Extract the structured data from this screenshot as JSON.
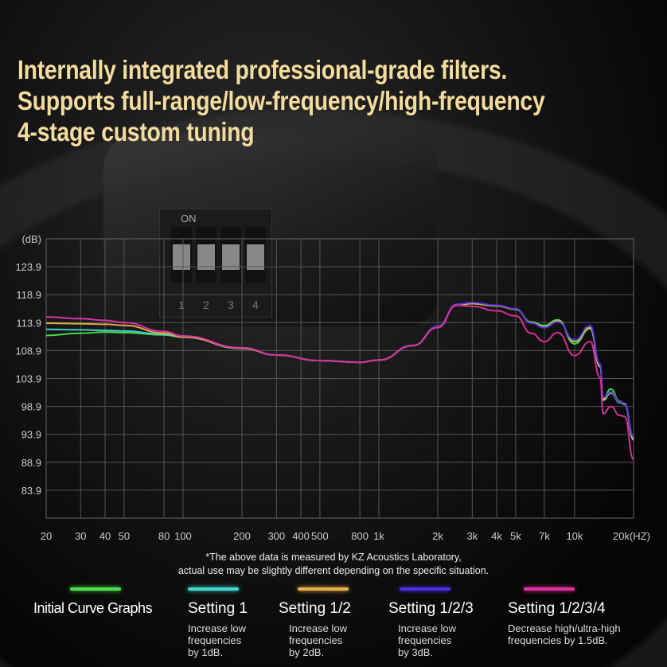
{
  "title": {
    "lines": [
      "Internally integrated professional-grade filters.",
      "Supports full-range/low-frequency/high-frequency",
      "4-stage custom tuning"
    ]
  },
  "device": {
    "switch_label": "ON",
    "switch_numbers": [
      "1",
      "2",
      "3",
      "4"
    ]
  },
  "note": {
    "lines": [
      "*The above data is measured by KZ Acoustics Laboratory,",
      "actual use may be slightly different depending on the specific situation."
    ]
  },
  "legend": [
    {
      "name": "Initial Curve Graphs",
      "desc": "",
      "color": "#4be04b"
    },
    {
      "name": "Setting 1",
      "desc": "Increase low\nfrequencies\nby 1dB.",
      "color": "#3fd9d0"
    },
    {
      "name": "Setting 1/2",
      "desc": "Increase low\nfrequencies\nby 2dB.",
      "color": "#e8b04a"
    },
    {
      "name": "Setting 1/2/3",
      "desc": "Increase low\nfrequencies\nby 3dB.",
      "color": "#4b2fe0"
    },
    {
      "name": "Setting 1/2/3/4",
      "desc": "Decrease high/ultra-high\nfrequencies by 1.5dB.",
      "color": "#e0309a"
    }
  ],
  "chart_data": {
    "type": "line",
    "title": "",
    "xlabel": "(HZ)",
    "ylabel": "(dB)",
    "xscale": "log",
    "xlim": [
      20,
      20000
    ],
    "ylim": [
      78.9,
      128.9
    ],
    "grid": true,
    "xticks": [
      20,
      30,
      40,
      50,
      80,
      100,
      200,
      300,
      400,
      500,
      800,
      1000,
      2000,
      3000,
      4000,
      5000,
      7000,
      10000,
      20000
    ],
    "xtick_labels": [
      "20",
      "30",
      "40",
      "50",
      "80",
      "100",
      "200",
      "300",
      "400",
      "500",
      "800",
      "1k",
      "2k",
      "3k",
      "4k",
      "5k",
      "7k",
      "10k",
      "20k(HZ)"
    ],
    "yticks": [
      123.9,
      118.9,
      113.9,
      108.9,
      103.9,
      98.9,
      93.9,
      88.9,
      83.9
    ],
    "ytick_labels": [
      "123.9",
      "118.9",
      "113.9",
      "108.9",
      "103.9",
      "98.9",
      "93.9",
      "88.9",
      "83.9"
    ],
    "x": [
      20,
      30,
      40,
      50,
      80,
      100,
      200,
      300,
      500,
      800,
      1000,
      1500,
      2000,
      2500,
      3000,
      4000,
      5000,
      6000,
      7000,
      8200,
      10000,
      12000,
      13500,
      14000,
      15300,
      17000,
      18000,
      20000
    ],
    "series": [
      {
        "name": "Initial Curve Graphs",
        "color": "#4be04b",
        "values": [
          111.6,
          112.0,
          112.2,
          112.1,
          111.7,
          111.3,
          109.3,
          108.1,
          107.1,
          106.8,
          107.2,
          109.8,
          113.2,
          117.0,
          117.3,
          116.9,
          116.3,
          114.0,
          113.4,
          114.4,
          110.1,
          112.8,
          106.0,
          100.4,
          102.0,
          99.8,
          99.4,
          92.9
        ]
      },
      {
        "name": "Setting 1",
        "color": "#3fd9d0",
        "values": [
          112.7,
          112.6,
          112.5,
          112.4,
          111.8,
          111.3,
          109.3,
          108.1,
          107.1,
          106.8,
          107.2,
          109.8,
          113.2,
          117.0,
          117.3,
          116.9,
          116.3,
          113.9,
          113.1,
          114.2,
          110.5,
          113.0,
          106.0,
          100.0,
          101.3,
          99.6,
          99.3,
          93.0
        ]
      },
      {
        "name": "Setting 1/2",
        "color": "#e8b04a",
        "values": [
          113.8,
          113.7,
          113.6,
          113.4,
          112.0,
          111.3,
          109.3,
          108.1,
          107.1,
          106.8,
          107.2,
          109.8,
          113.2,
          117.0,
          117.3,
          116.9,
          116.3,
          113.9,
          113.1,
          114.2,
          110.5,
          113.0,
          106.0,
          100.2,
          101.4,
          99.6,
          99.4,
          93.2
        ]
      },
      {
        "name": "Setting 1/2/3",
        "color": "#4b2fe0",
        "values": [
          114.9,
          114.6,
          114.3,
          113.9,
          112.3,
          111.5,
          109.4,
          108.1,
          107.1,
          106.8,
          107.2,
          109.8,
          113.2,
          117.2,
          117.5,
          117.0,
          116.4,
          113.8,
          113.0,
          114.0,
          110.8,
          113.4,
          106.5,
          100.5,
          101.5,
          99.7,
          99.5,
          93.5
        ]
      },
      {
        "name": "Setting 1/2/3/4",
        "color": "#e0309a",
        "values": [
          114.9,
          114.6,
          114.3,
          113.9,
          112.3,
          111.5,
          109.4,
          108.1,
          107.1,
          106.8,
          107.2,
          109.8,
          113.0,
          117.0,
          116.8,
          116.0,
          115.1,
          112.0,
          110.5,
          112.1,
          108.0,
          110.5,
          104.0,
          97.6,
          98.9,
          97.3,
          97.1,
          89.4
        ]
      }
    ]
  }
}
